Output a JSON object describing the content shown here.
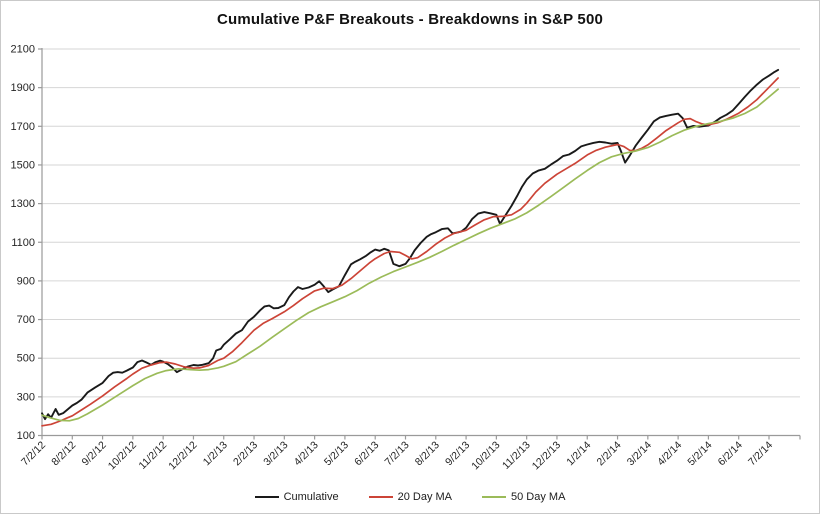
{
  "chart_data": {
    "type": "line",
    "title": "Cumulative P&F Breakouts - Breakdowns in S&P 500",
    "xlabel": "",
    "ylabel": "",
    "x_unit": "months since 7/2/12",
    "ylim": [
      100,
      2100
    ],
    "y_ticks": [
      100,
      300,
      500,
      700,
      900,
      1100,
      1300,
      1500,
      1700,
      1900,
      2100
    ],
    "x_tick_labels": [
      "7/2/12",
      "8/2/12",
      "9/2/12",
      "10/2/12",
      "11/2/12",
      "12/2/12",
      "1/2/13",
      "2/2/13",
      "3/2/13",
      "4/2/13",
      "5/2/13",
      "6/2/13",
      "7/2/13",
      "8/2/13",
      "9/2/13",
      "10/2/13",
      "11/2/13",
      "12/2/13",
      "1/2/14",
      "2/2/14",
      "3/2/14",
      "4/2/14",
      "5/2/14",
      "6/2/14",
      "7/2/14"
    ],
    "grid": "horizontal",
    "legend_position": "bottom",
    "colors": {
      "gridline": "#d6d6d6",
      "axis": "#9a9a9a",
      "tick_text": "#262626",
      "background": "#ffffff"
    },
    "series": [
      {
        "name": "Cumulative",
        "color": "#1a1a1a",
        "width": 1.9,
        "points": [
          [
            0,
            215
          ],
          [
            0.1,
            185
          ],
          [
            0.2,
            210
          ],
          [
            0.3,
            192
          ],
          [
            0.45,
            237
          ],
          [
            0.55,
            207
          ],
          [
            0.7,
            216
          ],
          [
            0.85,
            235
          ],
          [
            1,
            255
          ],
          [
            1.15,
            268
          ],
          [
            1.3,
            285
          ],
          [
            1.5,
            322
          ],
          [
            1.75,
            348
          ],
          [
            2,
            372
          ],
          [
            2.2,
            408
          ],
          [
            2.35,
            425
          ],
          [
            2.5,
            428
          ],
          [
            2.65,
            425
          ],
          [
            2.8,
            436
          ],
          [
            3,
            452
          ],
          [
            3.15,
            480
          ],
          [
            3.3,
            488
          ],
          [
            3.45,
            478
          ],
          [
            3.6,
            466
          ],
          [
            3.75,
            480
          ],
          [
            3.9,
            487
          ],
          [
            4,
            482
          ],
          [
            4.15,
            470
          ],
          [
            4.3,
            452
          ],
          [
            4.45,
            428
          ],
          [
            4.6,
            440
          ],
          [
            4.8,
            456
          ],
          [
            5,
            465
          ],
          [
            5.15,
            462
          ],
          [
            5.3,
            466
          ],
          [
            5.5,
            474
          ],
          [
            5.65,
            500
          ],
          [
            5.75,
            540
          ],
          [
            5.9,
            548
          ],
          [
            6,
            570
          ],
          [
            6.2,
            598
          ],
          [
            6.4,
            628
          ],
          [
            6.6,
            645
          ],
          [
            6.8,
            690
          ],
          [
            7,
            715
          ],
          [
            7.2,
            748
          ],
          [
            7.35,
            768
          ],
          [
            7.5,
            772
          ],
          [
            7.65,
            758
          ],
          [
            7.8,
            760
          ],
          [
            8,
            775
          ],
          [
            8.15,
            815
          ],
          [
            8.3,
            845
          ],
          [
            8.45,
            868
          ],
          [
            8.6,
            858
          ],
          [
            8.8,
            866
          ],
          [
            9,
            880
          ],
          [
            9.15,
            898
          ],
          [
            9.3,
            872
          ],
          [
            9.45,
            842
          ],
          [
            9.6,
            856
          ],
          [
            9.8,
            872
          ],
          [
            10,
            930
          ],
          [
            10.2,
            986
          ],
          [
            10.35,
            1000
          ],
          [
            10.5,
            1012
          ],
          [
            10.7,
            1030
          ],
          [
            10.85,
            1048
          ],
          [
            11,
            1062
          ],
          [
            11.15,
            1056
          ],
          [
            11.3,
            1066
          ],
          [
            11.45,
            1058
          ],
          [
            11.6,
            988
          ],
          [
            11.8,
            976
          ],
          [
            12,
            988
          ],
          [
            12.15,
            1018
          ],
          [
            12.3,
            1058
          ],
          [
            12.5,
            1096
          ],
          [
            12.7,
            1128
          ],
          [
            12.85,
            1142
          ],
          [
            13,
            1152
          ],
          [
            13.2,
            1168
          ],
          [
            13.4,
            1172
          ],
          [
            13.55,
            1146
          ],
          [
            13.7,
            1150
          ],
          [
            13.85,
            1156
          ],
          [
            14,
            1175
          ],
          [
            14.2,
            1220
          ],
          [
            14.4,
            1248
          ],
          [
            14.6,
            1256
          ],
          [
            14.8,
            1250
          ],
          [
            15,
            1242
          ],
          [
            15.12,
            1195
          ],
          [
            15.3,
            1240
          ],
          [
            15.5,
            1288
          ],
          [
            15.7,
            1344
          ],
          [
            15.85,
            1388
          ],
          [
            16,
            1424
          ],
          [
            16.2,
            1456
          ],
          [
            16.4,
            1472
          ],
          [
            16.6,
            1480
          ],
          [
            16.8,
            1502
          ],
          [
            17,
            1522
          ],
          [
            17.2,
            1546
          ],
          [
            17.4,
            1554
          ],
          [
            17.6,
            1572
          ],
          [
            17.8,
            1596
          ],
          [
            18,
            1606
          ],
          [
            18.2,
            1614
          ],
          [
            18.4,
            1620
          ],
          [
            18.6,
            1616
          ],
          [
            18.8,
            1610
          ],
          [
            19,
            1614
          ],
          [
            19.12,
            1568
          ],
          [
            19.25,
            1512
          ],
          [
            19.4,
            1548
          ],
          [
            19.6,
            1600
          ],
          [
            19.8,
            1642
          ],
          [
            20,
            1682
          ],
          [
            20.2,
            1726
          ],
          [
            20.4,
            1746
          ],
          [
            20.6,
            1754
          ],
          [
            20.8,
            1760
          ],
          [
            21,
            1765
          ],
          [
            21.15,
            1742
          ],
          [
            21.3,
            1692
          ],
          [
            21.5,
            1702
          ],
          [
            21.7,
            1698
          ],
          [
            21.85,
            1701
          ],
          [
            22,
            1704
          ],
          [
            22.2,
            1722
          ],
          [
            22.4,
            1744
          ],
          [
            22.6,
            1760
          ],
          [
            22.8,
            1782
          ],
          [
            23,
            1816
          ],
          [
            23.2,
            1852
          ],
          [
            23.4,
            1886
          ],
          [
            23.6,
            1916
          ],
          [
            23.8,
            1942
          ],
          [
            24,
            1962
          ],
          [
            24.15,
            1978
          ],
          [
            24.3,
            1992
          ]
        ]
      },
      {
        "name": "20 Day MA",
        "color": "#cc4437",
        "width": 1.7,
        "points": [
          [
            0,
            150
          ],
          [
            0.3,
            158
          ],
          [
            0.6,
            175
          ],
          [
            0.85,
            192
          ],
          [
            1,
            202
          ],
          [
            1.3,
            232
          ],
          [
            1.6,
            262
          ],
          [
            2,
            305
          ],
          [
            2.4,
            352
          ],
          [
            2.8,
            395
          ],
          [
            3,
            418
          ],
          [
            3.3,
            448
          ],
          [
            3.6,
            465
          ],
          [
            3.9,
            477
          ],
          [
            4.1,
            480
          ],
          [
            4.4,
            470
          ],
          [
            4.7,
            455
          ],
          [
            5,
            448
          ],
          [
            5.2,
            450
          ],
          [
            5.5,
            462
          ],
          [
            5.8,
            488
          ],
          [
            6,
            500
          ],
          [
            6.3,
            535
          ],
          [
            6.6,
            580
          ],
          [
            7,
            645
          ],
          [
            7.3,
            680
          ],
          [
            7.6,
            705
          ],
          [
            8,
            740
          ],
          [
            8.3,
            772
          ],
          [
            8.6,
            808
          ],
          [
            9,
            848
          ],
          [
            9.3,
            862
          ],
          [
            9.6,
            860
          ],
          [
            9.9,
            878
          ],
          [
            10.2,
            912
          ],
          [
            10.5,
            952
          ],
          [
            10.8,
            992
          ],
          [
            11,
            1015
          ],
          [
            11.3,
            1042
          ],
          [
            11.5,
            1052
          ],
          [
            11.8,
            1048
          ],
          [
            12,
            1032
          ],
          [
            12.2,
            1014
          ],
          [
            12.4,
            1020
          ],
          [
            12.7,
            1052
          ],
          [
            13,
            1090
          ],
          [
            13.3,
            1122
          ],
          [
            13.6,
            1146
          ],
          [
            14,
            1162
          ],
          [
            14.3,
            1190
          ],
          [
            14.6,
            1216
          ],
          [
            14.9,
            1232
          ],
          [
            15.2,
            1234
          ],
          [
            15.5,
            1242
          ],
          [
            15.8,
            1270
          ],
          [
            16,
            1302
          ],
          [
            16.3,
            1360
          ],
          [
            16.6,
            1405
          ],
          [
            17,
            1452
          ],
          [
            17.3,
            1480
          ],
          [
            17.6,
            1508
          ],
          [
            18,
            1552
          ],
          [
            18.3,
            1576
          ],
          [
            18.6,
            1592
          ],
          [
            19,
            1606
          ],
          [
            19.2,
            1596
          ],
          [
            19.4,
            1576
          ],
          [
            19.6,
            1574
          ],
          [
            19.8,
            1586
          ],
          [
            20,
            1604
          ],
          [
            20.3,
            1640
          ],
          [
            20.6,
            1678
          ],
          [
            21,
            1718
          ],
          [
            21.2,
            1736
          ],
          [
            21.4,
            1740
          ],
          [
            21.6,
            1724
          ],
          [
            21.8,
            1712
          ],
          [
            22,
            1708
          ],
          [
            22.3,
            1718
          ],
          [
            22.6,
            1736
          ],
          [
            23,
            1768
          ],
          [
            23.3,
            1800
          ],
          [
            23.6,
            1838
          ],
          [
            24,
            1902
          ],
          [
            24.3,
            1950
          ]
        ]
      },
      {
        "name": "50 Day MA",
        "color": "#9bbb59",
        "width": 1.7,
        "points": [
          [
            0,
            205
          ],
          [
            0.3,
            190
          ],
          [
            0.6,
            178
          ],
          [
            0.9,
            176
          ],
          [
            1.2,
            188
          ],
          [
            1.5,
            212
          ],
          [
            2,
            258
          ],
          [
            2.5,
            308
          ],
          [
            3,
            358
          ],
          [
            3.4,
            395
          ],
          [
            3.8,
            422
          ],
          [
            4.1,
            436
          ],
          [
            4.5,
            445
          ],
          [
            4.9,
            441
          ],
          [
            5.2,
            438
          ],
          [
            5.5,
            441
          ],
          [
            5.8,
            450
          ],
          [
            6,
            458
          ],
          [
            6.4,
            482
          ],
          [
            6.8,
            522
          ],
          [
            7.2,
            562
          ],
          [
            7.6,
            608
          ],
          [
            8,
            652
          ],
          [
            8.4,
            696
          ],
          [
            8.8,
            736
          ],
          [
            9.2,
            766
          ],
          [
            9.6,
            792
          ],
          [
            10,
            818
          ],
          [
            10.4,
            850
          ],
          [
            10.8,
            888
          ],
          [
            11.2,
            920
          ],
          [
            11.6,
            948
          ],
          [
            12,
            972
          ],
          [
            12.4,
            996
          ],
          [
            12.8,
            1022
          ],
          [
            13.2,
            1052
          ],
          [
            13.6,
            1084
          ],
          [
            14,
            1114
          ],
          [
            14.4,
            1144
          ],
          [
            14.8,
            1172
          ],
          [
            15.2,
            1196
          ],
          [
            15.6,
            1220
          ],
          [
            16,
            1252
          ],
          [
            16.4,
            1292
          ],
          [
            16.8,
            1336
          ],
          [
            17.2,
            1382
          ],
          [
            17.6,
            1428
          ],
          [
            18,
            1472
          ],
          [
            18.4,
            1512
          ],
          [
            18.8,
            1542
          ],
          [
            19.2,
            1560
          ],
          [
            19.6,
            1572
          ],
          [
            20,
            1590
          ],
          [
            20.4,
            1618
          ],
          [
            20.8,
            1652
          ],
          [
            21.2,
            1680
          ],
          [
            21.6,
            1700
          ],
          [
            22,
            1714
          ],
          [
            22.4,
            1726
          ],
          [
            22.8,
            1742
          ],
          [
            23.2,
            1766
          ],
          [
            23.6,
            1800
          ],
          [
            24,
            1852
          ],
          [
            24.3,
            1892
          ]
        ]
      }
    ]
  }
}
